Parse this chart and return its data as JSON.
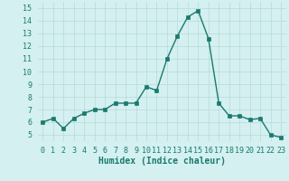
{
  "x": [
    0,
    1,
    2,
    3,
    4,
    5,
    6,
    7,
    8,
    9,
    10,
    11,
    12,
    13,
    14,
    15,
    16,
    17,
    18,
    19,
    20,
    21,
    22,
    23
  ],
  "y": [
    6.0,
    6.3,
    5.5,
    6.3,
    6.7,
    7.0,
    7.0,
    7.5,
    7.5,
    7.5,
    8.8,
    8.5,
    11.0,
    12.8,
    14.3,
    14.8,
    12.6,
    7.5,
    6.5,
    6.5,
    6.2,
    6.3,
    5.0,
    4.8
  ],
  "xlabel": "Humidex (Indice chaleur)",
  "ylim": [
    4.5,
    15.5
  ],
  "xlim": [
    -0.5,
    23.5
  ],
  "yticks": [
    5,
    6,
    7,
    8,
    9,
    10,
    11,
    12,
    13,
    14,
    15
  ],
  "xticks": [
    0,
    1,
    2,
    3,
    4,
    5,
    6,
    7,
    8,
    9,
    10,
    11,
    12,
    13,
    14,
    15,
    16,
    17,
    18,
    19,
    20,
    21,
    22,
    23
  ],
  "line_color": "#1a7a6e",
  "bg_color": "#d4f0f0",
  "grid_color": "#b8dada",
  "marker_size": 2.5,
  "line_width": 1.0,
  "tick_fontsize": 6.0,
  "xlabel_fontsize": 7.0
}
